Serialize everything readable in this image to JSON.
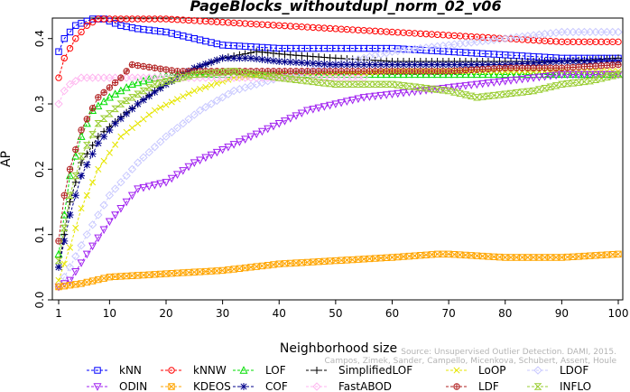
{
  "chart_data": {
    "type": "line",
    "title": "PageBlocks_withoutdupl_norm_02_v06",
    "xlabel": "Neighborhood size",
    "ylabel": "AP",
    "xlim": [
      1,
      100
    ],
    "ylim": [
      0,
      0.43
    ],
    "xticks": [
      1,
      10,
      20,
      30,
      40,
      50,
      60,
      70,
      80,
      90,
      100
    ],
    "yticks": [
      0.0,
      0.1,
      0.2,
      0.3,
      0.4
    ],
    "ytick_labels": [
      "0.0",
      "0.1",
      "0.2",
      "0.3",
      "0.4"
    ],
    "grid": false,
    "legend_position": "bottom",
    "annotation_lines": [
      "Source: Unsupervised Outlier Detection. DAMI, 2015.",
      "Campos, Zimek, Sander, Campello, Micenkova, Schubert, Assent, Houle"
    ],
    "series": [
      {
        "name": "kNN",
        "color": "#0000ff",
        "marker": "square",
        "points": [
          [
            1,
            0.38
          ],
          [
            2,
            0.4
          ],
          [
            4,
            0.42
          ],
          [
            7,
            0.43
          ],
          [
            9,
            0.43
          ],
          [
            12,
            0.42
          ],
          [
            15,
            0.415
          ],
          [
            20,
            0.41
          ],
          [
            25,
            0.4
          ],
          [
            30,
            0.39
          ],
          [
            40,
            0.385
          ],
          [
            50,
            0.385
          ],
          [
            60,
            0.385
          ],
          [
            70,
            0.38
          ],
          [
            80,
            0.375
          ],
          [
            90,
            0.37
          ],
          [
            100,
            0.37
          ]
        ]
      },
      {
        "name": "kNNW",
        "color": "#ff0000",
        "marker": "circle",
        "points": [
          [
            1,
            0.34
          ],
          [
            2,
            0.37
          ],
          [
            4,
            0.4
          ],
          [
            6,
            0.42
          ],
          [
            8,
            0.43
          ],
          [
            10,
            0.43
          ],
          [
            15,
            0.43
          ],
          [
            20,
            0.43
          ],
          [
            30,
            0.425
          ],
          [
            40,
            0.42
          ],
          [
            50,
            0.415
          ],
          [
            60,
            0.41
          ],
          [
            70,
            0.405
          ],
          [
            80,
            0.4
          ],
          [
            90,
            0.395
          ],
          [
            100,
            0.395
          ]
        ]
      },
      {
        "name": "LOF",
        "color": "#00dd00",
        "marker": "triangle-up",
        "points": [
          [
            1,
            0.07
          ],
          [
            2,
            0.13
          ],
          [
            3,
            0.19
          ],
          [
            5,
            0.25
          ],
          [
            7,
            0.29
          ],
          [
            10,
            0.31
          ],
          [
            14,
            0.33
          ],
          [
            18,
            0.34
          ],
          [
            22,
            0.345
          ],
          [
            30,
            0.345
          ],
          [
            40,
            0.345
          ],
          [
            50,
            0.345
          ],
          [
            60,
            0.345
          ],
          [
            70,
            0.345
          ],
          [
            80,
            0.345
          ],
          [
            90,
            0.345
          ],
          [
            100,
            0.345
          ]
        ]
      },
      {
        "name": "SimplifiedLOF",
        "color": "#000000",
        "marker": "plus",
        "points": [
          [
            1,
            0.05
          ],
          [
            2,
            0.1
          ],
          [
            3,
            0.15
          ],
          [
            5,
            0.21
          ],
          [
            8,
            0.25
          ],
          [
            12,
            0.28
          ],
          [
            18,
            0.32
          ],
          [
            24,
            0.35
          ],
          [
            30,
            0.37
          ],
          [
            36,
            0.38
          ],
          [
            42,
            0.375
          ],
          [
            50,
            0.37
          ],
          [
            60,
            0.365
          ],
          [
            70,
            0.365
          ],
          [
            80,
            0.365
          ],
          [
            90,
            0.365
          ],
          [
            100,
            0.37
          ]
        ]
      },
      {
        "name": "LoOP",
        "color": "#e6e600",
        "marker": "x",
        "points": [
          [
            1,
            0.03
          ],
          [
            3,
            0.08
          ],
          [
            5,
            0.14
          ],
          [
            8,
            0.2
          ],
          [
            12,
            0.25
          ],
          [
            18,
            0.29
          ],
          [
            25,
            0.32
          ],
          [
            32,
            0.34
          ],
          [
            40,
            0.345
          ],
          [
            50,
            0.345
          ],
          [
            60,
            0.35
          ],
          [
            70,
            0.35
          ],
          [
            80,
            0.35
          ],
          [
            90,
            0.35
          ],
          [
            100,
            0.35
          ]
        ]
      },
      {
        "name": "LDOF",
        "color": "#c8c8ff",
        "marker": "diamond",
        "points": [
          [
            1,
            0.02
          ],
          [
            3,
            0.05
          ],
          [
            6,
            0.1
          ],
          [
            10,
            0.16
          ],
          [
            15,
            0.21
          ],
          [
            20,
            0.25
          ],
          [
            26,
            0.29
          ],
          [
            32,
            0.32
          ],
          [
            40,
            0.34
          ],
          [
            50,
            0.36
          ],
          [
            60,
            0.38
          ],
          [
            70,
            0.39
          ],
          [
            80,
            0.4
          ],
          [
            90,
            0.41
          ],
          [
            100,
            0.41
          ]
        ]
      },
      {
        "name": "ODIN",
        "color": "#a020f0",
        "marker": "triangle-down",
        "points": [
          [
            1,
            0.02
          ],
          [
            3,
            0.03
          ],
          [
            6,
            0.07
          ],
          [
            10,
            0.12
          ],
          [
            15,
            0.17
          ],
          [
            20,
            0.18
          ],
          [
            25,
            0.21
          ],
          [
            30,
            0.23
          ],
          [
            35,
            0.25
          ],
          [
            40,
            0.27
          ],
          [
            45,
            0.29
          ],
          [
            50,
            0.3
          ],
          [
            55,
            0.31
          ],
          [
            60,
            0.315
          ],
          [
            65,
            0.32
          ],
          [
            70,
            0.325
          ],
          [
            75,
            0.33
          ],
          [
            80,
            0.335
          ],
          [
            85,
            0.34
          ],
          [
            90,
            0.345
          ],
          [
            95,
            0.345
          ],
          [
            100,
            0.345
          ]
        ]
      },
      {
        "name": "KDEOS",
        "color": "#ffa500",
        "marker": "square-x",
        "points": [
          [
            1,
            0.02
          ],
          [
            5,
            0.025
          ],
          [
            10,
            0.035
          ],
          [
            20,
            0.04
          ],
          [
            30,
            0.045
          ],
          [
            40,
            0.055
          ],
          [
            50,
            0.06
          ],
          [
            60,
            0.065
          ],
          [
            68,
            0.07
          ],
          [
            70,
            0.07
          ],
          [
            80,
            0.065
          ],
          [
            90,
            0.065
          ],
          [
            100,
            0.07
          ]
        ]
      },
      {
        "name": "COF",
        "color": "#00008b",
        "marker": "asterisk",
        "points": [
          [
            1,
            0.05
          ],
          [
            2,
            0.09
          ],
          [
            3,
            0.13
          ],
          [
            5,
            0.19
          ],
          [
            8,
            0.24
          ],
          [
            11,
            0.27
          ],
          [
            15,
            0.3
          ],
          [
            20,
            0.33
          ],
          [
            25,
            0.355
          ],
          [
            30,
            0.37
          ],
          [
            35,
            0.37
          ],
          [
            40,
            0.365
          ],
          [
            50,
            0.36
          ],
          [
            60,
            0.36
          ],
          [
            70,
            0.36
          ],
          [
            80,
            0.36
          ],
          [
            90,
            0.365
          ],
          [
            100,
            0.365
          ]
        ]
      },
      {
        "name": "FastABOD",
        "color": "#ffb6f0",
        "marker": "diamond",
        "points": [
          [
            1,
            0.3
          ],
          [
            2,
            0.32
          ],
          [
            3,
            0.33
          ],
          [
            5,
            0.34
          ],
          [
            10,
            0.34
          ],
          [
            20,
            0.34
          ],
          [
            30,
            0.34
          ],
          [
            40,
            0.34
          ],
          [
            50,
            0.34
          ],
          [
            55,
            0.34
          ]
        ]
      },
      {
        "name": "LDF",
        "color": "#b22222",
        "marker": "circle-plus",
        "points": [
          [
            1,
            0.09
          ],
          [
            2,
            0.16
          ],
          [
            3,
            0.2
          ],
          [
            5,
            0.26
          ],
          [
            8,
            0.31
          ],
          [
            12,
            0.34
          ],
          [
            14,
            0.36
          ],
          [
            18,
            0.355
          ],
          [
            22,
            0.35
          ],
          [
            30,
            0.35
          ],
          [
            40,
            0.35
          ],
          [
            50,
            0.35
          ],
          [
            60,
            0.35
          ],
          [
            70,
            0.35
          ],
          [
            80,
            0.355
          ],
          [
            90,
            0.355
          ],
          [
            100,
            0.36
          ]
        ]
      },
      {
        "name": "INFLO",
        "color": "#9acd32",
        "marker": "hourglass",
        "points": [
          [
            1,
            0.06
          ],
          [
            2,
            0.11
          ],
          [
            3,
            0.16
          ],
          [
            5,
            0.22
          ],
          [
            8,
            0.27
          ],
          [
            12,
            0.3
          ],
          [
            18,
            0.33
          ],
          [
            25,
            0.345
          ],
          [
            32,
            0.35
          ],
          [
            40,
            0.34
          ],
          [
            50,
            0.33
          ],
          [
            60,
            0.33
          ],
          [
            65,
            0.325
          ],
          [
            70,
            0.32
          ],
          [
            75,
            0.31
          ],
          [
            80,
            0.315
          ],
          [
            85,
            0.32
          ],
          [
            90,
            0.33
          ],
          [
            95,
            0.335
          ],
          [
            100,
            0.345
          ]
        ]
      }
    ]
  }
}
